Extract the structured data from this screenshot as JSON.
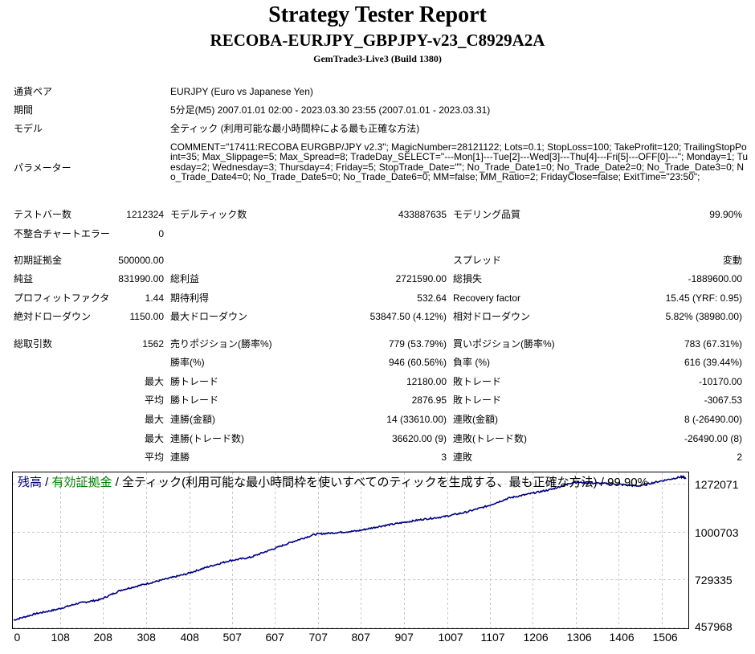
{
  "header": {
    "title": "Strategy Tester Report",
    "ea_name": "RECOBA-EURJPY_GBPJPY-v23_C8929A2A",
    "server": "GemTrade3-Live3 (Build 1380)"
  },
  "settings": {
    "symbol_label": "通貨ペア",
    "symbol_value": "EURJPY (Euro vs Japanese Yen)",
    "period_label": "期間",
    "period_value": "5分足(M5) 2007.01.01 02:00 - 2023.03.30 23:55 (2007.01.01 - 2023.03.31)",
    "model_label": "モデル",
    "model_value": "全ティック (利用可能な最小時間枠による最も正確な方法)",
    "params_label": "パラメーター",
    "params_value": "COMMENT=\"17411:RECOBA EURGBP/JPY v2.3\"; MagicNumber=28121122; Lots=0.1; StopLoss=100; TakeProfit=120; TrailingStopPoint=35; Max_Slippage=5; Max_Spread=8; TradeDay_SELECT=\"---Mon[1]---Tue[2]---Wed[3]---Thu[4]---Fri[5]---OFF[0]---\"; Monday=1; Tuesday=2; Wednesday=3; Thursday=4; Friday=5; StopTrade_Date=\"\"; No_Trade_Date1=0; No_Trade_Date2=0; No_Trade_Date3=0; No_Trade_Date4=0; No_Trade_Date5=0; No_Trade_Date6=0; MM=false; MM_Ratio=2; FridayClose=false; ExitTime=\"23:50\";"
  },
  "stats": {
    "bars_label": "テストバー数",
    "bars_value": "1212324",
    "ticks_label": "モデルティック数",
    "ticks_value": "433887635",
    "quality_label": "モデリング品質",
    "quality_value": "99.90%",
    "mismatch_label": "不整合チャートエラー",
    "mismatch_value": "0",
    "deposit_label": "初期証拠金",
    "deposit_value": "500000.00",
    "spread_label": "スプレッド",
    "spread_value": "変動",
    "net_label": "純益",
    "net_value": "831990.00",
    "gross_profit_label": "総利益",
    "gross_profit_value": "2721590.00",
    "gross_loss_label": "総損失",
    "gross_loss_value": "-1889600.00",
    "pf_label": "プロフィットファクタ",
    "pf_value": "1.44",
    "payoff_label": "期待利得",
    "payoff_value": "532.64",
    "recovery_label": "Recovery factor",
    "recovery_value": "15.45 (YRF: 0.95)",
    "abs_dd_label": "絶対ドローダウン",
    "abs_dd_value": "1150.00",
    "max_dd_label": "最大ドローダウン",
    "max_dd_value": "53847.50 (4.12%)",
    "rel_dd_label": "相対ドローダウン",
    "rel_dd_value": "5.82% (38980.00)",
    "trades_label": "総取引数",
    "trades_value": "1562",
    "short_label": "売りポジション(勝率%)",
    "short_value": "779 (53.79%)",
    "long_label": "買いポジション(勝率%)",
    "long_value": "783 (67.31%)",
    "win_rate_label": "勝率(%)",
    "win_rate_value": "946 (60.56%)",
    "loss_rate_label": "負率 (%)",
    "loss_rate_value": "616 (39.44%)",
    "max_word": "最大",
    "avg_word": "平均",
    "largest_win_label": "勝トレード",
    "largest_win_value": "12180.00",
    "largest_loss_label": "敗トレード",
    "largest_loss_value": "-10170.00",
    "avg_win_label": "勝トレード",
    "avg_win_value": "2876.95",
    "avg_loss_label": "敗トレード",
    "avg_loss_value": "-3067.53",
    "max_consec_wins_amt_label": "連勝(金額)",
    "max_consec_wins_amt_value": "14 (33610.00)",
    "max_consec_losses_amt_label": "連敗(金額)",
    "max_consec_losses_amt_value": "8 (-26490.00)",
    "max_consec_wins_cnt_label": "連勝(トレード数)",
    "max_consec_wins_cnt_value": "36620.00 (9)",
    "max_consec_losses_cnt_label": "連敗(トレード数)",
    "max_consec_losses_cnt_value": "-26490.00 (8)",
    "avg_consec_wins_label": "連勝",
    "avg_consec_wins_value": "3",
    "avg_consec_losses_label": "連敗",
    "avg_consec_losses_value": "2"
  },
  "chart_legend": {
    "balance": "残高",
    "sep1": " / ",
    "equity": "有効証拠金",
    "rest": " / 全ティック(利用可能な最小時間枠を使いすべてのティックを生成する、最も正確な方法) / 99.90%"
  },
  "colors": {
    "balance": "#000080",
    "equity": "#008000",
    "grid": "#c8c8c8"
  },
  "chart_data": {
    "type": "line",
    "x_ticks": [
      "0",
      "108",
      "208",
      "308",
      "408",
      "507",
      "607",
      "707",
      "807",
      "907",
      "1007",
      "1107",
      "1206",
      "1306",
      "1406",
      "1506"
    ],
    "y_ticks": [
      "1272071",
      "1000703",
      "729335",
      "457968"
    ],
    "xlim": [
      0,
      1562
    ],
    "ylim": [
      457968,
      1331000
    ],
    "series": [
      {
        "x": [
          0,
          50,
          100,
          150,
          200,
          250,
          300,
          350,
          400,
          450,
          500,
          550,
          600,
          650,
          700,
          750,
          800,
          850,
          900,
          950,
          1000,
          1050,
          1100,
          1150,
          1200,
          1250,
          1300,
          1350,
          1400,
          1450,
          1500,
          1550,
          1562
        ],
        "values": [
          500000,
          535000,
          560000,
          595000,
          615000,
          670000,
          700000,
          730000,
          760000,
          800000,
          835000,
          855000,
          900000,
          945000,
          985000,
          995000,
          1005000,
          1030000,
          1050000,
          1070000,
          1085000,
          1110000,
          1145000,
          1190000,
          1215000,
          1240000,
          1280000,
          1275000,
          1270000,
          1258000,
          1285000,
          1310000,
          1305000
        ]
      }
    ]
  }
}
